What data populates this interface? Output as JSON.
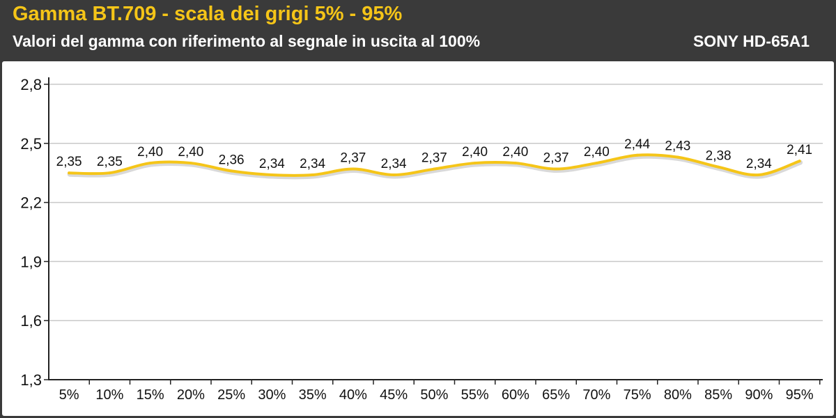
{
  "header": {
    "title": "Gamma BT.709 - scala dei grigi 5% - 95%",
    "subtitle": "Valori del gamma con riferimento al segnale in uscita al 100%",
    "model": "SONY HD-65A1"
  },
  "colors": {
    "header_bg": "#3a3a3a",
    "title": "#f5c518",
    "line": "#f5c518",
    "grid": "#c8c8c8"
  },
  "chart_data": {
    "type": "line",
    "title": "Gamma BT.709 - scala dei grigi 5% - 95%",
    "subtitle": "Valori del gamma con riferimento al segnale in uscita al 100%",
    "categories": [
      "5%",
      "10%",
      "15%",
      "20%",
      "25%",
      "30%",
      "35%",
      "40%",
      "45%",
      "50%",
      "55%",
      "60%",
      "65%",
      "70%",
      "75%",
      "80%",
      "85%",
      "90%",
      "95%"
    ],
    "series": [
      {
        "values": [
          2.35,
          2.35,
          2.4,
          2.4,
          2.36,
          2.34,
          2.34,
          2.37,
          2.34,
          2.37,
          2.4,
          2.4,
          2.37,
          2.4,
          2.44,
          2.43,
          2.38,
          2.34,
          2.41
        ]
      }
    ],
    "data_labels": [
      "2,35",
      "2,35",
      "2,40",
      "2,40",
      "2,36",
      "2,34",
      "2,34",
      "2,37",
      "2,34",
      "2,37",
      "2,40",
      "2,40",
      "2,37",
      "2,40",
      "2,44",
      "2,43",
      "2,38",
      "2,34",
      "2,41"
    ],
    "ylim": [
      1.3,
      2.8
    ],
    "y_ticks": [
      1.3,
      1.6,
      1.9,
      2.2,
      2.5,
      2.8
    ],
    "y_tick_labels": [
      "1,3",
      "1,6",
      "1,9",
      "2,2",
      "2,5",
      "2,8"
    ],
    "grid": true,
    "legend": "none"
  }
}
